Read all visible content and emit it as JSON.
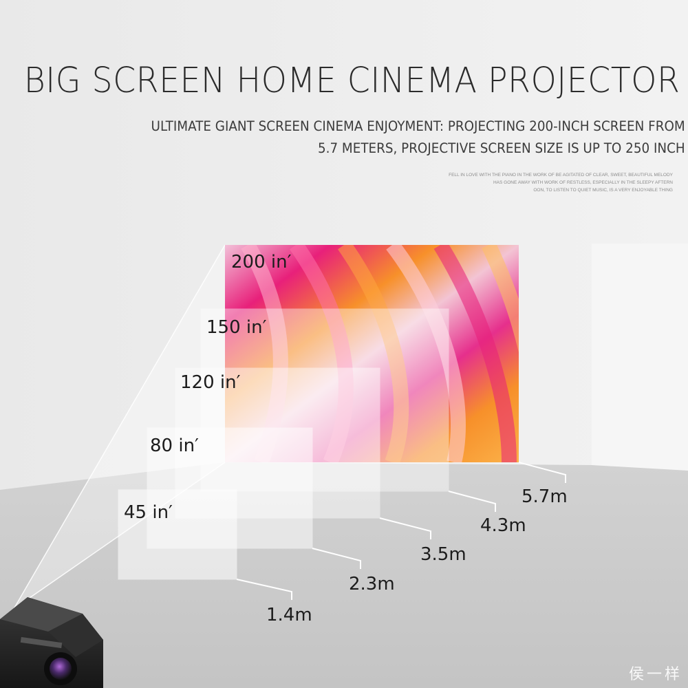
{
  "header": {
    "title": "BIG SCREEN HOME CINEMA PROJECTOR",
    "subtitle_line1": "ULTIMATE GIANT SCREEN CINEMA ENJOYMENT: PROJECTING 200-INCH SCREEN FROM",
    "subtitle_line2": "5.7 METERS, PROJECTIVE SCREEN SIZE IS UP TO 250 INCH",
    "fine_line1": "FELL IN LOVE WITH THE PIANO IN THE WORK OF BE AGITATED OF CLEAR, SWEET, BEAUTIFUL MELODY",
    "fine_line2": "HAS GONE AWAY WITH WORK OF RESTLESS, ESPECIALLY IN THE SLEEPY AFTERN",
    "fine_line3": "OON, TO LISTEN TO QUIET MUSIC, IS A VERY ENJOYABLE THING"
  },
  "screens": [
    {
      "size": "200 in′",
      "distance": "5.7m"
    },
    {
      "size": "150 in′",
      "distance": "4.3m"
    },
    {
      "size": "120 in′",
      "distance": "3.5m"
    },
    {
      "size": "80 in′",
      "distance": "2.3m"
    },
    {
      "size": "45 in′",
      "distance": "1.4m"
    }
  ],
  "watermark": "侯一样",
  "colors": {
    "background": "#ededed",
    "floor": "#c9c9c9",
    "text": "#1c1c1c",
    "projector_body": "#2a2a2a",
    "gradient_pink": "#e8207a",
    "gradient_orange": "#f7902a"
  }
}
